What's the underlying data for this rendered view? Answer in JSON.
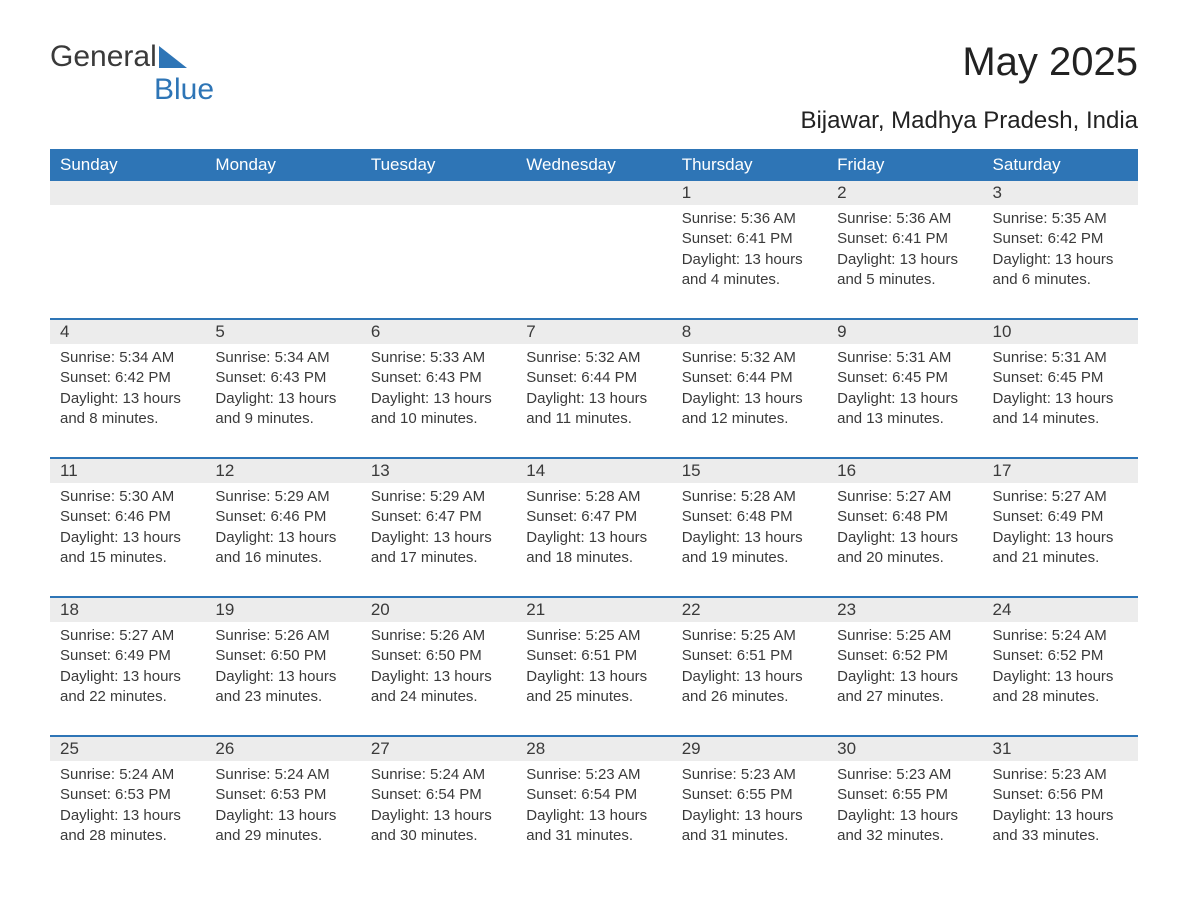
{
  "brand": {
    "part1": "General",
    "part2": "Blue"
  },
  "title": "May 2025",
  "location": "Bijawar, Madhya Pradesh, India",
  "colors": {
    "header_bg": "#2e75b6",
    "header_text": "#ffffff",
    "date_bg": "#ececec",
    "text": "#3a3a3a",
    "page_bg": "#ffffff"
  },
  "day_names": [
    "Sunday",
    "Monday",
    "Tuesday",
    "Wednesday",
    "Thursday",
    "Friday",
    "Saturday"
  ],
  "weeks": [
    [
      null,
      null,
      null,
      null,
      {
        "d": "1",
        "sr": "5:36 AM",
        "ss": "6:41 PM",
        "dl": "13 hours and 4 minutes."
      },
      {
        "d": "2",
        "sr": "5:36 AM",
        "ss": "6:41 PM",
        "dl": "13 hours and 5 minutes."
      },
      {
        "d": "3",
        "sr": "5:35 AM",
        "ss": "6:42 PM",
        "dl": "13 hours and 6 minutes."
      }
    ],
    [
      {
        "d": "4",
        "sr": "5:34 AM",
        "ss": "6:42 PM",
        "dl": "13 hours and 8 minutes."
      },
      {
        "d": "5",
        "sr": "5:34 AM",
        "ss": "6:43 PM",
        "dl": "13 hours and 9 minutes."
      },
      {
        "d": "6",
        "sr": "5:33 AM",
        "ss": "6:43 PM",
        "dl": "13 hours and 10 minutes."
      },
      {
        "d": "7",
        "sr": "5:32 AM",
        "ss": "6:44 PM",
        "dl": "13 hours and 11 minutes."
      },
      {
        "d": "8",
        "sr": "5:32 AM",
        "ss": "6:44 PM",
        "dl": "13 hours and 12 minutes."
      },
      {
        "d": "9",
        "sr": "5:31 AM",
        "ss": "6:45 PM",
        "dl": "13 hours and 13 minutes."
      },
      {
        "d": "10",
        "sr": "5:31 AM",
        "ss": "6:45 PM",
        "dl": "13 hours and 14 minutes."
      }
    ],
    [
      {
        "d": "11",
        "sr": "5:30 AM",
        "ss": "6:46 PM",
        "dl": "13 hours and 15 minutes."
      },
      {
        "d": "12",
        "sr": "5:29 AM",
        "ss": "6:46 PM",
        "dl": "13 hours and 16 minutes."
      },
      {
        "d": "13",
        "sr": "5:29 AM",
        "ss": "6:47 PM",
        "dl": "13 hours and 17 minutes."
      },
      {
        "d": "14",
        "sr": "5:28 AM",
        "ss": "6:47 PM",
        "dl": "13 hours and 18 minutes."
      },
      {
        "d": "15",
        "sr": "5:28 AM",
        "ss": "6:48 PM",
        "dl": "13 hours and 19 minutes."
      },
      {
        "d": "16",
        "sr": "5:27 AM",
        "ss": "6:48 PM",
        "dl": "13 hours and 20 minutes."
      },
      {
        "d": "17",
        "sr": "5:27 AM",
        "ss": "6:49 PM",
        "dl": "13 hours and 21 minutes."
      }
    ],
    [
      {
        "d": "18",
        "sr": "5:27 AM",
        "ss": "6:49 PM",
        "dl": "13 hours and 22 minutes."
      },
      {
        "d": "19",
        "sr": "5:26 AM",
        "ss": "6:50 PM",
        "dl": "13 hours and 23 minutes."
      },
      {
        "d": "20",
        "sr": "5:26 AM",
        "ss": "6:50 PM",
        "dl": "13 hours and 24 minutes."
      },
      {
        "d": "21",
        "sr": "5:25 AM",
        "ss": "6:51 PM",
        "dl": "13 hours and 25 minutes."
      },
      {
        "d": "22",
        "sr": "5:25 AM",
        "ss": "6:51 PM",
        "dl": "13 hours and 26 minutes."
      },
      {
        "d": "23",
        "sr": "5:25 AM",
        "ss": "6:52 PM",
        "dl": "13 hours and 27 minutes."
      },
      {
        "d": "24",
        "sr": "5:24 AM",
        "ss": "6:52 PM",
        "dl": "13 hours and 28 minutes."
      }
    ],
    [
      {
        "d": "25",
        "sr": "5:24 AM",
        "ss": "6:53 PM",
        "dl": "13 hours and 28 minutes."
      },
      {
        "d": "26",
        "sr": "5:24 AM",
        "ss": "6:53 PM",
        "dl": "13 hours and 29 minutes."
      },
      {
        "d": "27",
        "sr": "5:24 AM",
        "ss": "6:54 PM",
        "dl": "13 hours and 30 minutes."
      },
      {
        "d": "28",
        "sr": "5:23 AM",
        "ss": "6:54 PM",
        "dl": "13 hours and 31 minutes."
      },
      {
        "d": "29",
        "sr": "5:23 AM",
        "ss": "6:55 PM",
        "dl": "13 hours and 31 minutes."
      },
      {
        "d": "30",
        "sr": "5:23 AM",
        "ss": "6:55 PM",
        "dl": "13 hours and 32 minutes."
      },
      {
        "d": "31",
        "sr": "5:23 AM",
        "ss": "6:56 PM",
        "dl": "13 hours and 33 minutes."
      }
    ]
  ],
  "labels": {
    "sunrise": "Sunrise: ",
    "sunset": "Sunset: ",
    "daylight": "Daylight: "
  }
}
